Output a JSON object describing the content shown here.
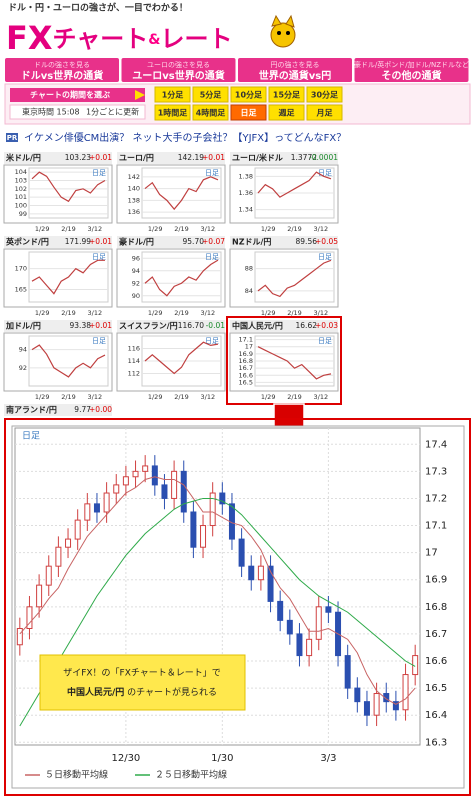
{
  "header": {
    "tagline": "ドル・円・ユーロの強さが、一目でわかる！",
    "logo": [
      "FX",
      "チャート",
      "&",
      "レート"
    ]
  },
  "nav": [
    {
      "sub": "ドルの強さを見る",
      "main": "ドルvs世界の通貨"
    },
    {
      "sub": "ユーロの強さを見る",
      "main": "ユーロvs世界の通貨"
    },
    {
      "sub": "円の強さを見る",
      "main": "世界の通貨vs円"
    },
    {
      "sub": "豪ドル/英ポンド/加ドル/NZドルなど",
      "main": "その他の通貨"
    }
  ],
  "period": {
    "label": "チャートの期間を選ぶ",
    "time": "東京時間 15:08",
    "update": "1分ごとに更新",
    "buttons": [
      "1分足",
      "5分足",
      "10分足",
      "15分足",
      "30分足",
      "1時間足",
      "4時間足",
      "日足",
      "週足",
      "月足"
    ],
    "active": 7
  },
  "ad": {
    "badge": "PR",
    "text": "イケメン俳優CM出演？ ネット大手の子会社？【YJFX】ってどんなFX？"
  },
  "selected_chart": 8,
  "mini_charts": [
    {
      "name": "米ドル/円",
      "price": "103.23",
      "change": "+0.01",
      "period": "日足",
      "x_labels": [
        "1/29",
        "2/19",
        "3/12"
      ],
      "ylim": [
        98.5,
        104.5
      ],
      "yticks": [
        99,
        100,
        101,
        102,
        103,
        104
      ],
      "values": [
        103.2,
        104.0,
        103.5,
        102.2,
        101.0,
        100.5,
        101.8,
        102.0,
        101.5,
        102.5,
        103.0
      ]
    },
    {
      "name": "ユーロ/円",
      "price": "142.19",
      "change": "+0.01",
      "period": "日足",
      "x_labels": [
        "1/29",
        "2/19",
        "3/12"
      ],
      "ylim": [
        135,
        143.5
      ],
      "yticks": [
        136,
        138,
        140,
        142
      ],
      "values": [
        140,
        141,
        139,
        138,
        136.5,
        138,
        140,
        139.5,
        141.5,
        142,
        141.5
      ]
    },
    {
      "name": "ユーロ/米ドル",
      "price": "1.3772",
      "change": "-0.0001",
      "period": "日足",
      "x_labels": [
        "1/29",
        "2/19",
        "3/12"
      ],
      "ylim": [
        1.33,
        1.39
      ],
      "yticks": [
        1.34,
        1.36,
        1.38
      ],
      "values": [
        1.36,
        1.37,
        1.365,
        1.355,
        1.36,
        1.365,
        1.37,
        1.375,
        1.385,
        1.38,
        1.377
      ]
    },
    {
      "name": "英ポンド/円",
      "price": "171.99",
      "change": "+0.01",
      "period": "日足",
      "x_labels": [
        "1/29",
        "2/19",
        "3/12"
      ],
      "ylim": [
        162,
        174
      ],
      "yticks": [
        165,
        170
      ],
      "values": [
        167,
        168,
        166,
        164,
        167,
        168,
        170,
        169,
        171,
        172,
        172
      ]
    },
    {
      "name": "豪ドル/円",
      "price": "95.70",
      "change": "+0.07",
      "period": "日足",
      "x_labels": [
        "1/29",
        "2/19",
        "3/12"
      ],
      "ylim": [
        89,
        97
      ],
      "yticks": [
        90,
        92,
        94,
        96
      ],
      "values": [
        92,
        93,
        91,
        90,
        91.5,
        92,
        93,
        92.5,
        94,
        95,
        95.7
      ]
    },
    {
      "name": "NZドル/円",
      "price": "89.56",
      "change": "+0.05",
      "period": "日足",
      "x_labels": [
        "1/29",
        "2/19",
        "3/12"
      ],
      "ylim": [
        82,
        91
      ],
      "yticks": [
        84,
        88
      ],
      "values": [
        84,
        85,
        83.5,
        83,
        84.5,
        85,
        86,
        87,
        88,
        89,
        89.5
      ]
    },
    {
      "name": "加ドル/円",
      "price": "93.38",
      "change": "+0.01",
      "period": "日足",
      "x_labels": [
        "1/29",
        "2/19",
        "3/12"
      ],
      "ylim": [
        90,
        95.5
      ],
      "yticks": [
        92,
        94
      ],
      "values": [
        94,
        94.5,
        93.5,
        92,
        91.5,
        91,
        92,
        92.5,
        92,
        93,
        93.4
      ]
    },
    {
      "name": "スイスフラン/円",
      "price": "116.70",
      "change": "-0.01",
      "period": "日足",
      "x_labels": [
        "1/29",
        "2/19",
        "3/12"
      ],
      "ylim": [
        110,
        118
      ],
      "yticks": [
        112,
        114,
        116
      ],
      "values": [
        114,
        115,
        114,
        113,
        112,
        113,
        115,
        116,
        117,
        116.5,
        116.7
      ]
    },
    {
      "name": "中国人民元/円",
      "price": "16.62",
      "change": "+0.03",
      "period": "日足",
      "x_labels": [
        "1/29",
        "2/19",
        "3/12"
      ],
      "ylim": [
        16.45,
        17.15
      ],
      "yticks": [
        16.5,
        16.6,
        16.7,
        16.8,
        16.9,
        17,
        17.1
      ],
      "values": [
        17.0,
        16.95,
        16.9,
        16.85,
        16.8,
        16.7,
        16.75,
        16.65,
        16.55,
        16.6,
        16.62
      ]
    },
    {
      "name": "南アランド/円",
      "price": "9.77",
      "change": "+0.00"
    }
  ],
  "main_chart": {
    "type": "candlestick",
    "period": "日足",
    "categories": [
      null,
      null,
      null,
      null,
      null,
      null,
      null,
      null,
      null,
      null,
      null,
      "12/30",
      null,
      null,
      null,
      null,
      null,
      null,
      null,
      null,
      null,
      "1/30",
      null,
      null,
      null,
      null,
      null,
      null,
      null,
      null,
      null,
      null,
      "3/3",
      null,
      null,
      null,
      null,
      null,
      null,
      null,
      null,
      null
    ],
    "open": [
      16.66,
      16.72,
      16.8,
      16.88,
      16.95,
      17.02,
      17.05,
      17.12,
      17.18,
      17.15,
      17.22,
      17.25,
      17.28,
      17.3,
      17.32,
      17.25,
      17.2,
      17.3,
      17.15,
      17.02,
      17.1,
      17.22,
      17.18,
      17.05,
      16.95,
      16.9,
      16.95,
      16.82,
      16.75,
      16.7,
      16.62,
      16.68,
      16.8,
      16.78,
      16.62,
      16.5,
      16.45,
      16.4,
      16.48,
      16.45,
      16.42,
      16.55
    ],
    "high": [
      16.76,
      16.84,
      16.92,
      16.99,
      17.06,
      17.09,
      17.16,
      17.22,
      17.22,
      17.26,
      17.29,
      17.32,
      17.34,
      17.36,
      17.36,
      17.29,
      17.34,
      17.34,
      17.19,
      17.14,
      17.26,
      17.26,
      17.22,
      17.09,
      16.99,
      16.99,
      16.99,
      16.86,
      16.79,
      16.74,
      16.72,
      16.84,
      16.84,
      16.82,
      16.66,
      16.54,
      16.49,
      16.52,
      16.52,
      16.49,
      16.59,
      16.66
    ],
    "low": [
      16.62,
      16.68,
      16.76,
      16.84,
      16.91,
      16.98,
      17.01,
      17.08,
      17.11,
      17.11,
      17.18,
      17.21,
      17.24,
      17.26,
      17.21,
      17.16,
      17.16,
      17.11,
      16.98,
      16.98,
      17.06,
      17.14,
      17.01,
      16.91,
      16.86,
      16.86,
      16.78,
      16.71,
      16.66,
      16.58,
      16.58,
      16.64,
      16.74,
      16.58,
      16.46,
      16.41,
      16.36,
      16.36,
      16.41,
      16.38,
      16.38,
      16.51
    ],
    "close": [
      16.72,
      16.8,
      16.88,
      16.95,
      17.02,
      17.05,
      17.12,
      17.18,
      17.15,
      17.22,
      17.25,
      17.28,
      17.3,
      17.32,
      17.25,
      17.2,
      17.3,
      17.15,
      17.02,
      17.1,
      17.22,
      17.18,
      17.05,
      16.95,
      16.9,
      16.95,
      16.82,
      16.75,
      16.7,
      16.62,
      16.68,
      16.8,
      16.78,
      16.62,
      16.5,
      16.45,
      16.4,
      16.48,
      16.45,
      16.42,
      16.55,
      16.62
    ],
    "up_color": "#d04040",
    "down_color": "#2a4fb0",
    "series": [
      {
        "name": "５日移動平均線",
        "color": "#c86464",
        "values": [
          16.7,
          16.74,
          16.78,
          16.83,
          16.87,
          16.94,
          17.0,
          17.06,
          17.1,
          17.14,
          17.18,
          17.22,
          17.24,
          17.27,
          17.28,
          17.27,
          17.27,
          17.25,
          17.2,
          17.15,
          17.15,
          17.13,
          17.11,
          17.1,
          17.06,
          17.01,
          16.93,
          16.87,
          16.83,
          16.77,
          16.71,
          16.71,
          16.72,
          16.7,
          16.68,
          16.63,
          16.55,
          16.49,
          16.46,
          16.44,
          16.46,
          16.5
        ]
      },
      {
        "name": "２５日移動平均線",
        "color": "#2faa4a",
        "values": [
          16.36,
          16.42,
          16.48,
          16.54,
          16.6,
          16.66,
          16.72,
          16.78,
          16.84,
          16.89,
          16.94,
          16.99,
          17.03,
          17.07,
          17.1,
          17.13,
          17.16,
          17.18,
          17.19,
          17.2,
          17.2,
          17.19,
          17.17,
          17.14,
          17.1,
          17.06,
          17.02,
          16.98,
          16.94,
          16.9,
          16.87,
          16.84,
          16.82,
          16.8,
          16.78,
          16.75,
          16.72,
          16.69,
          16.66,
          16.63,
          16.6,
          16.58
        ]
      }
    ],
    "ylim": [
      16.29,
      17.46
    ],
    "yticks": [
      16.3,
      16.4,
      16.5,
      16.6,
      16.7,
      16.8,
      16.9,
      17,
      17.1,
      17.2,
      17.3,
      17.4
    ],
    "grid": true,
    "annotation": {
      "line1": "ザイFX！の「FXチャート＆レート」で",
      "line2_bold": "中国人民元/円",
      "line2": " のチャートが見られる"
    }
  }
}
